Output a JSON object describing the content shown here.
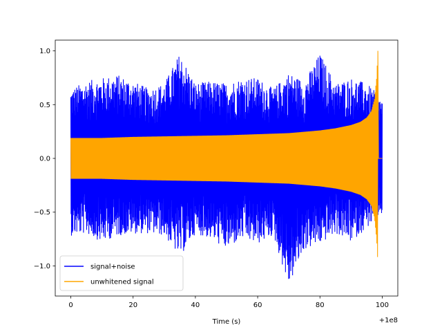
{
  "chart_data": {
    "type": "line",
    "title": "",
    "xlabel": "Time (s)",
    "ylabel": "",
    "x_offset_label": "+1e8",
    "xlim": [
      -5,
      105
    ],
    "ylim": [
      -1.28,
      1.1
    ],
    "xticks": [
      0,
      20,
      40,
      60,
      80,
      100
    ],
    "xtick_labels": [
      "0",
      "20",
      "40",
      "60",
      "80",
      "100"
    ],
    "yticks": [
      -1.0,
      -0.5,
      0.0,
      0.5,
      1.0
    ],
    "ytick_labels": [
      "−1.0",
      "−0.5",
      "0.0",
      "0.5",
      "1.0"
    ],
    "grid": false,
    "legend_position": "lower-left",
    "series": [
      {
        "name": "signal+noise",
        "color": "#0000ff",
        "envelope": {
          "x": [
            0,
            5,
            10,
            15,
            20,
            25,
            30,
            35,
            40,
            45,
            50,
            55,
            60,
            65,
            70,
            75,
            80,
            85,
            90,
            95,
            98.5,
            100
          ],
          "upper": [
            0.65,
            0.72,
            0.75,
            0.78,
            0.72,
            0.65,
            0.7,
            0.98,
            0.7,
            0.72,
            0.7,
            0.75,
            0.75,
            0.65,
            0.8,
            0.72,
            0.98,
            0.7,
            0.75,
            0.7,
            0.6,
            0.55
          ],
          "lower": [
            -0.72,
            -0.7,
            -0.78,
            -0.72,
            -0.7,
            -0.7,
            -0.72,
            -0.92,
            -0.7,
            -0.75,
            -0.85,
            -0.75,
            -0.8,
            -0.72,
            -1.19,
            -0.85,
            -0.8,
            -0.7,
            -0.78,
            -0.65,
            -0.55,
            -0.52
          ]
        }
      },
      {
        "name": "unwhitened signal",
        "color": "#ffa500",
        "envelope": {
          "x": [
            0,
            10,
            20,
            30,
            40,
            50,
            60,
            70,
            80,
            85,
            90,
            93,
            95,
            96.5,
            97.5,
            98.2,
            98.6
          ],
          "upper": [
            0.19,
            0.19,
            0.2,
            0.205,
            0.21,
            0.215,
            0.225,
            0.235,
            0.26,
            0.28,
            0.31,
            0.34,
            0.38,
            0.44,
            0.55,
            0.75,
            1.0
          ],
          "lower": [
            -0.19,
            -0.19,
            -0.2,
            -0.205,
            -0.21,
            -0.215,
            -0.225,
            -0.235,
            -0.26,
            -0.28,
            -0.31,
            -0.34,
            -0.38,
            -0.44,
            -0.55,
            -0.75,
            -0.98
          ]
        }
      }
    ]
  }
}
